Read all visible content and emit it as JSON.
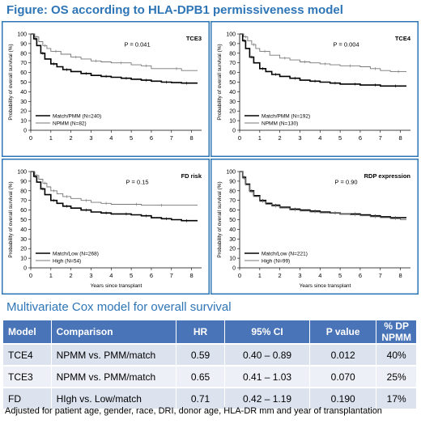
{
  "figure_title": "Figure: OS according to HLA-DPB1 permissiveness model",
  "chart_data": [
    {
      "type": "line",
      "title": "TCE3",
      "ylabel": "Probability of overall survival (%)",
      "xlabel": "",
      "xlim": [
        0,
        8.5
      ],
      "ylim": [
        0,
        100
      ],
      "xticks": [
        0,
        1,
        2,
        3,
        4,
        5,
        6,
        7,
        8
      ],
      "yticks": [
        0,
        10,
        20,
        30,
        40,
        50,
        60,
        70,
        80,
        90,
        100
      ],
      "pvalue": "P = 0.041",
      "legend_position": "bottom-left",
      "series": [
        {
          "name": "Match/PMM (N=240)",
          "color": "#000000",
          "x": [
            0,
            0.15,
            0.3,
            0.5,
            0.7,
            1.0,
            1.3,
            1.6,
            2.0,
            2.5,
            3.0,
            3.5,
            4.0,
            4.5,
            5.0,
            5.5,
            6.0,
            6.5,
            7.0,
            7.5,
            8.0,
            8.3
          ],
          "y": [
            100,
            95,
            88,
            80,
            74,
            69,
            66,
            63,
            61,
            59,
            57,
            56,
            55,
            54,
            53,
            52,
            51,
            50,
            49.5,
            49,
            49,
            49
          ]
        },
        {
          "name": "NPMM (N=82)",
          "color": "#777777",
          "x": [
            0,
            0.2,
            0.4,
            0.6,
            0.8,
            1.0,
            1.5,
            2.0,
            2.5,
            3.0,
            3.5,
            4.0,
            5.0,
            5.5,
            6.0,
            7.0,
            7.5,
            8.3
          ],
          "y": [
            100,
            97,
            92,
            88,
            85,
            82,
            79,
            76,
            74,
            72,
            71,
            70,
            68,
            67,
            64,
            64,
            62,
            62
          ]
        }
      ]
    },
    {
      "type": "line",
      "title": "TCE4",
      "ylabel": "Probability of overall survival (%)",
      "xlabel": "",
      "xlim": [
        0,
        8.5
      ],
      "ylim": [
        0,
        100
      ],
      "xticks": [
        0,
        1,
        2,
        3,
        4,
        5,
        6,
        7,
        8
      ],
      "yticks": [
        0,
        10,
        20,
        30,
        40,
        50,
        60,
        70,
        80,
        90,
        100
      ],
      "pvalue": "P = 0.004",
      "legend_position": "bottom-left",
      "series": [
        {
          "name": "Match/PMM (N=192)",
          "color": "#000000",
          "x": [
            0,
            0.15,
            0.3,
            0.5,
            0.7,
            1.0,
            1.3,
            1.6,
            2.0,
            2.5,
            3.0,
            3.5,
            4.0,
            4.5,
            5.0,
            5.5,
            6.0,
            6.5,
            7.0,
            7.5,
            8.0,
            8.3
          ],
          "y": [
            100,
            93,
            85,
            76,
            70,
            64,
            61,
            58,
            56,
            54,
            52,
            51,
            50,
            49,
            48,
            48,
            47,
            47,
            46,
            46,
            46,
            46
          ]
        },
        {
          "name": "NPMM (N=130)",
          "color": "#777777",
          "x": [
            0,
            0.2,
            0.4,
            0.6,
            0.8,
            1.0,
            1.5,
            2.0,
            2.5,
            3.0,
            3.5,
            4.0,
            4.5,
            5.0,
            6.0,
            6.5,
            7.0,
            7.5,
            8.3
          ],
          "y": [
            100,
            97,
            93,
            89,
            85,
            82,
            78,
            75,
            73,
            71,
            70,
            69,
            68,
            67,
            66,
            64,
            62,
            61,
            61
          ]
        }
      ]
    },
    {
      "type": "line",
      "title": "FD risk",
      "ylabel": "Probability of overall survival (%)",
      "xlabel": "",
      "xlim": [
        0,
        8.5
      ],
      "ylim": [
        0,
        100
      ],
      "xticks": [
        0,
        1,
        2,
        3,
        4,
        5,
        6,
        7,
        8
      ],
      "yticks": [
        0,
        10,
        20,
        30,
        40,
        50,
        60,
        70,
        80,
        90,
        100
      ],
      "pvalue": "P = 0.15",
      "legend_position": "bottom-left",
      "series": [
        {
          "name": "Match/Low (N=268)",
          "color": "#000000",
          "x": [
            0,
            0.15,
            0.3,
            0.5,
            0.7,
            1.0,
            1.3,
            1.6,
            2.0,
            2.5,
            3.0,
            3.5,
            4.0,
            4.5,
            5.0,
            5.5,
            6.0,
            6.5,
            7.0,
            7.5,
            8.0,
            8.3
          ],
          "y": [
            100,
            95,
            89,
            82,
            76,
            70,
            67,
            64,
            62,
            60,
            58,
            57,
            56,
            56,
            55,
            54,
            52,
            51,
            50,
            49,
            49,
            49
          ]
        },
        {
          "name": "High (N=54)",
          "color": "#777777",
          "x": [
            0,
            0.2,
            0.4,
            0.6,
            0.8,
            1.0,
            1.3,
            1.6,
            2.0,
            2.5,
            3.0,
            3.5,
            4.0,
            5.0,
            5.5,
            6.0,
            7.0,
            8.3
          ],
          "y": [
            100,
            96,
            92,
            88,
            84,
            80,
            77,
            74,
            72,
            70,
            68,
            67,
            66,
            66,
            65,
            65,
            65,
            65
          ]
        }
      ]
    },
    {
      "type": "line",
      "title": "RDP expression",
      "ylabel": "Probability of overall survival (%)",
      "xlabel": "",
      "xlim": [
        0,
        8.5
      ],
      "ylim": [
        0,
        100
      ],
      "xticks": [
        0,
        1,
        2,
        3,
        4,
        5,
        6,
        7,
        8
      ],
      "yticks": [
        0,
        10,
        20,
        30,
        40,
        50,
        60,
        70,
        80,
        90,
        100
      ],
      "pvalue": "P = 0.90",
      "legend_position": "bottom-left",
      "series": [
        {
          "name": "Match/Low (N=221)",
          "color": "#000000",
          "x": [
            0,
            0.15,
            0.3,
            0.5,
            0.7,
            1.0,
            1.3,
            1.6,
            2.0,
            2.5,
            3.0,
            3.5,
            4.0,
            4.5,
            5.0,
            5.5,
            6.0,
            6.5,
            7.0,
            7.5,
            8.0,
            8.3
          ],
          "y": [
            100,
            94,
            87,
            80,
            75,
            70,
            67,
            65,
            63,
            61,
            60,
            59,
            58,
            57,
            56,
            56,
            55,
            54,
            53,
            52,
            52,
            52
          ]
        },
        {
          "name": "High (N=99)",
          "color": "#777777",
          "x": [
            0,
            0.15,
            0.3,
            0.5,
            0.7,
            1.0,
            1.3,
            1.6,
            2.0,
            2.5,
            3.0,
            3.5,
            4.0,
            4.5,
            5.0,
            5.5,
            6.0,
            6.5,
            7.0,
            7.5,
            8.0,
            8.3
          ],
          "y": [
            100,
            93,
            86,
            79,
            74,
            69,
            66,
            64,
            62,
            60,
            59,
            58,
            57,
            57,
            56,
            55,
            54,
            53,
            52,
            51,
            50,
            50
          ]
        }
      ]
    }
  ],
  "x_axis_title": "Years since transplant",
  "cox": {
    "title": "Multivariate Cox model for overall survival",
    "headers": [
      "Model",
      "Comparison",
      "HR",
      "95% CI",
      "P value",
      "% DP NPMM"
    ],
    "rows": [
      [
        "TCE4",
        "NPMM vs. PMM/match",
        "0.59",
        "0.40 – 0.89",
        "0.012",
        "40%"
      ],
      [
        "TCE3",
        "NPMM vs. PMM/match",
        "0.65",
        "0.41 – 1.03",
        "0.070",
        "25%"
      ],
      [
        "FD",
        "HIgh vs. Low/match",
        "0.71",
        "0.42 – 1.19",
        "0.190",
        "17%"
      ]
    ],
    "footnote": "Adjusted for patient age, gender, race, DRI, donor age, HLA-DR mm and year of transplantation"
  },
  "colors": {
    "title_blue": "#2e75b6",
    "panel_border": "#2e75b6",
    "table_header": "#4a74b8"
  }
}
